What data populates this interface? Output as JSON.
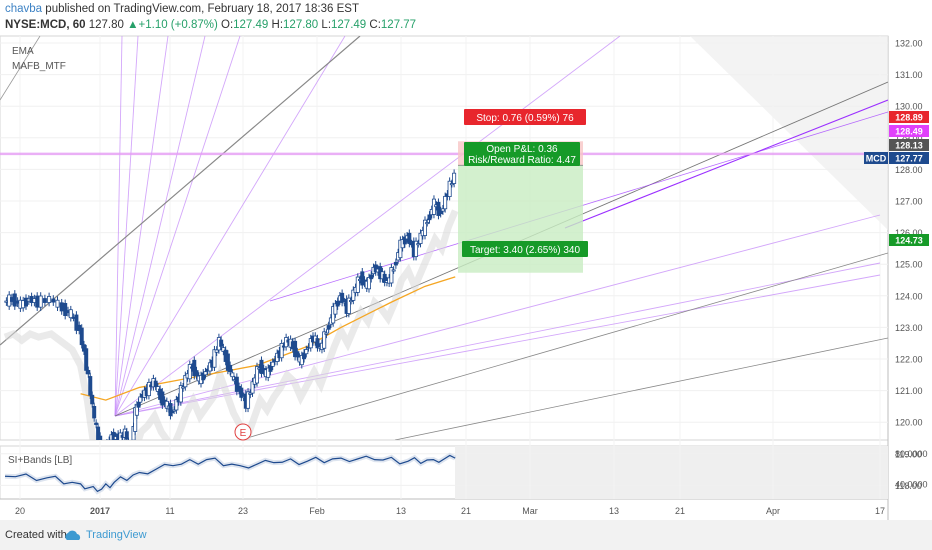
{
  "header": {
    "author": "chavba",
    "published_text": "published on TradingView.com, February 18, 2017 18:36 EST",
    "symbol": "NYSE:MCD, 60",
    "price": "127.80",
    "change_arrow": "▲",
    "change": "+1.10 (+0.87%)",
    "o_label": "O:",
    "o_value": "127.49",
    "h_label": "H:",
    "h_value": "127.80",
    "l_label": "L:",
    "l_value": "127.49",
    "c_label": "C:",
    "c_value": "127.77"
  },
  "indicators": [
    "EMA",
    "MAFB_MTF"
  ],
  "position": {
    "stop_label": "Stop: 0.76 (0.59%) 76",
    "open_pl": "Open P&L: 0.36",
    "risk_reward": "Risk/Reward Ratio: 4.47",
    "target_label": "Target: 3.40 (2.65%) 340"
  },
  "price_tags": [
    {
      "text": "128.89",
      "color": "#e8262d"
    },
    {
      "text": "128.49",
      "color": "#e040fb"
    },
    {
      "text": "128.13",
      "color": "#555555"
    },
    {
      "text": "MCD",
      "color": "#1e4a8e"
    },
    {
      "text": "127.77",
      "color": "#1e4a8e"
    },
    {
      "text": "124.73",
      "color": "#169a28"
    }
  ],
  "earnings_marker": "E",
  "oscillator": {
    "label": "SI+Bands [LB]",
    "ticks": [
      "80.0000",
      "40.0000"
    ]
  },
  "footer": {
    "created_with": "Created with",
    "brand": "TradingView"
  },
  "colors": {
    "up_candle": "#1e4a8e",
    "down_candle": "#1e4a8e",
    "ema": "#f5a623",
    "fan_line": "#c58af9",
    "stop_zone": "#f8c5c5",
    "target_zone": "#c8ecc2",
    "oscillator_line": "#1e4a8e"
  },
  "chart_data": {
    "type": "candlestick",
    "symbol": "NYSE:MCD",
    "interval": "60",
    "y_ticks": [
      132.0,
      131.0,
      130.0,
      129.0,
      128.0,
      127.0,
      126.0,
      125.0,
      124.0,
      123.0,
      122.0,
      121.0,
      120.0,
      119.0,
      118.0
    ],
    "y_tick_labels": [
      "132.00",
      "131.00",
      "130.00",
      "129.00",
      "128.00",
      "127.00",
      "126.00",
      "125.00",
      "124.00",
      "123.00",
      "122.00",
      "121.00",
      "120.00",
      "119.00",
      "118.00"
    ],
    "x_tick_labels": [
      "20",
      "2017",
      "11",
      "23",
      "Feb",
      "13",
      "21",
      "Mar",
      "13",
      "21",
      "Apr",
      "17"
    ],
    "ylim": [
      117.35,
      132.3
    ],
    "price_path": [
      [
        0,
        123.8
      ],
      [
        0.1,
        123.9
      ],
      [
        0.2,
        123.7
      ],
      [
        0.3,
        123.9
      ],
      [
        0.4,
        123.8
      ],
      [
        0.55,
        123.9
      ],
      [
        0.7,
        123.6
      ],
      [
        0.8,
        123.4
      ],
      [
        0.9,
        122.9
      ],
      [
        0.98,
        121.8
      ],
      [
        1.05,
        120.5
      ],
      [
        1.12,
        119.4
      ],
      [
        1.2,
        119.1
      ],
      [
        1.28,
        119.6
      ],
      [
        1.36,
        119.4
      ],
      [
        1.44,
        119.7
      ],
      [
        1.5,
        119.0
      ],
      [
        1.56,
        120.3
      ],
      [
        1.62,
        120.8
      ],
      [
        1.7,
        121.0
      ],
      [
        1.78,
        121.3
      ],
      [
        1.86,
        120.8
      ],
      [
        1.94,
        120.5
      ],
      [
        2.0,
        120.3
      ],
      [
        2.08,
        120.8
      ],
      [
        2.16,
        121.4
      ],
      [
        2.24,
        121.8
      ],
      [
        2.32,
        121.3
      ],
      [
        2.4,
        121.6
      ],
      [
        2.48,
        121.9
      ],
      [
        2.56,
        122.6
      ],
      [
        2.64,
        122.0
      ],
      [
        2.72,
        121.4
      ],
      [
        2.8,
        121.0
      ],
      [
        2.88,
        120.6
      ],
      [
        2.96,
        121.2
      ],
      [
        3.04,
        121.8
      ],
      [
        3.12,
        121.5
      ],
      [
        3.2,
        121.9
      ],
      [
        3.28,
        122.2
      ],
      [
        3.36,
        122.6
      ],
      [
        3.44,
        122.4
      ],
      [
        3.52,
        121.9
      ],
      [
        3.6,
        122.3
      ],
      [
        3.68,
        122.7
      ],
      [
        3.76,
        122.3
      ],
      [
        3.84,
        122.9
      ],
      [
        3.92,
        123.5
      ],
      [
        4.0,
        124.0
      ],
      [
        4.08,
        123.6
      ],
      [
        4.16,
        124.1
      ],
      [
        4.24,
        124.6
      ],
      [
        4.32,
        124.3
      ],
      [
        4.4,
        124.9
      ],
      [
        4.48,
        124.7
      ],
      [
        4.56,
        124.4
      ],
      [
        4.64,
        124.9
      ],
      [
        4.72,
        125.6
      ],
      [
        4.8,
        125.9
      ],
      [
        4.88,
        125.4
      ],
      [
        4.96,
        125.9
      ],
      [
        5.04,
        126.4
      ],
      [
        5.12,
        126.9
      ],
      [
        5.2,
        126.6
      ],
      [
        5.28,
        127.3
      ],
      [
        5.36,
        127.8
      ]
    ],
    "ema_path": [
      [
        0.9,
        120.9
      ],
      [
        1.2,
        120.7
      ],
      [
        1.6,
        121.1
      ],
      [
        2.0,
        121.3
      ],
      [
        2.6,
        121.6
      ],
      [
        3.0,
        121.8
      ],
      [
        3.6,
        122.4
      ],
      [
        4.0,
        123.0
      ],
      [
        4.6,
        123.8
      ],
      [
        5.0,
        124.3
      ],
      [
        5.36,
        124.6
      ]
    ],
    "position": {
      "entry": 128.13,
      "stop": 128.89,
      "target": 124.73
    },
    "horizontal_levels": [
      128.49
    ],
    "oscillator_ylim": [
      20,
      90
    ],
    "oscillator_path": [
      [
        0,
        50
      ],
      [
        0.5,
        48
      ],
      [
        0.9,
        40
      ],
      [
        1.1,
        30
      ],
      [
        1.3,
        42
      ],
      [
        1.6,
        55
      ],
      [
        2.0,
        64
      ],
      [
        2.4,
        72
      ],
      [
        2.8,
        64
      ],
      [
        3.2,
        68
      ],
      [
        3.6,
        70
      ],
      [
        4.0,
        74
      ],
      [
        4.4,
        72
      ],
      [
        4.8,
        70
      ],
      [
        5.1,
        72
      ],
      [
        5.36,
        74
      ]
    ]
  }
}
